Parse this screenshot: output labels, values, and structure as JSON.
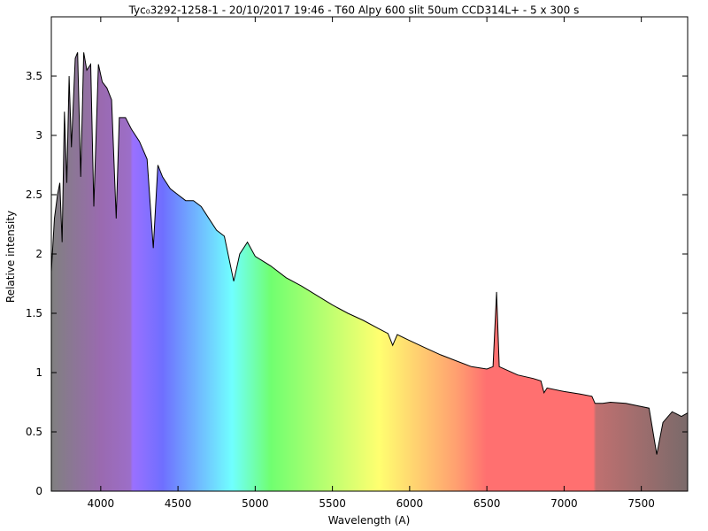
{
  "chart_data": {
    "type": "line",
    "title": "Tyc₀3292-1258-1 - 20/10/2017 19:46 - T60 Alpy 600 slit 50um CCD314L+ - 5 x 300 s",
    "xlabel": "Wavelength (A)",
    "ylabel": "Relative intensity",
    "xlim": [
      3680,
      7800
    ],
    "ylim": [
      0,
      4
    ],
    "xticks": [
      4000,
      4500,
      5000,
      5500,
      6000,
      6500,
      7000,
      7500
    ],
    "yticks": [
      0,
      0.5,
      1,
      1.5,
      2,
      2.5,
      3,
      3.5
    ],
    "color": "#000000",
    "x": [
      3680,
      3700,
      3720,
      3735,
      3750,
      3765,
      3780,
      3795,
      3810,
      3835,
      3850,
      3870,
      3890,
      3910,
      3935,
      3955,
      3985,
      4010,
      4040,
      4070,
      4100,
      4120,
      4160,
      4200,
      4250,
      4300,
      4340,
      4370,
      4400,
      4450,
      4500,
      4550,
      4600,
      4650,
      4700,
      4750,
      4800,
      4861,
      4900,
      4950,
      5000,
      5100,
      5200,
      5300,
      5400,
      5500,
      5600,
      5700,
      5800,
      5860,
      5890,
      5920,
      6000,
      6100,
      6200,
      6300,
      6400,
      6500,
      6540,
      6563,
      6580,
      6700,
      6800,
      6850,
      6870,
      6890,
      7000,
      7100,
      7180,
      7200,
      7250,
      7300,
      7400,
      7550,
      7600,
      7640,
      7700,
      7760,
      7800
    ],
    "values": [
      1.85,
      2.3,
      2.5,
      2.6,
      2.1,
      3.2,
      2.6,
      3.5,
      2.9,
      3.65,
      3.7,
      2.65,
      3.7,
      3.55,
      3.6,
      2.4,
      3.6,
      3.45,
      3.4,
      3.3,
      2.3,
      3.15,
      3.15,
      3.05,
      2.95,
      2.8,
      2.05,
      2.75,
      2.65,
      2.55,
      2.5,
      2.45,
      2.45,
      2.4,
      2.3,
      2.2,
      2.15,
      1.77,
      2.0,
      2.1,
      1.98,
      1.9,
      1.8,
      1.73,
      1.65,
      1.57,
      1.5,
      1.44,
      1.37,
      1.33,
      1.23,
      1.32,
      1.27,
      1.21,
      1.15,
      1.1,
      1.05,
      1.03,
      1.05,
      1.68,
      1.05,
      0.98,
      0.95,
      0.93,
      0.83,
      0.87,
      0.84,
      0.82,
      0.8,
      0.74,
      0.74,
      0.75,
      0.74,
      0.7,
      0.31,
      0.58,
      0.67,
      0.63,
      0.66
    ]
  }
}
